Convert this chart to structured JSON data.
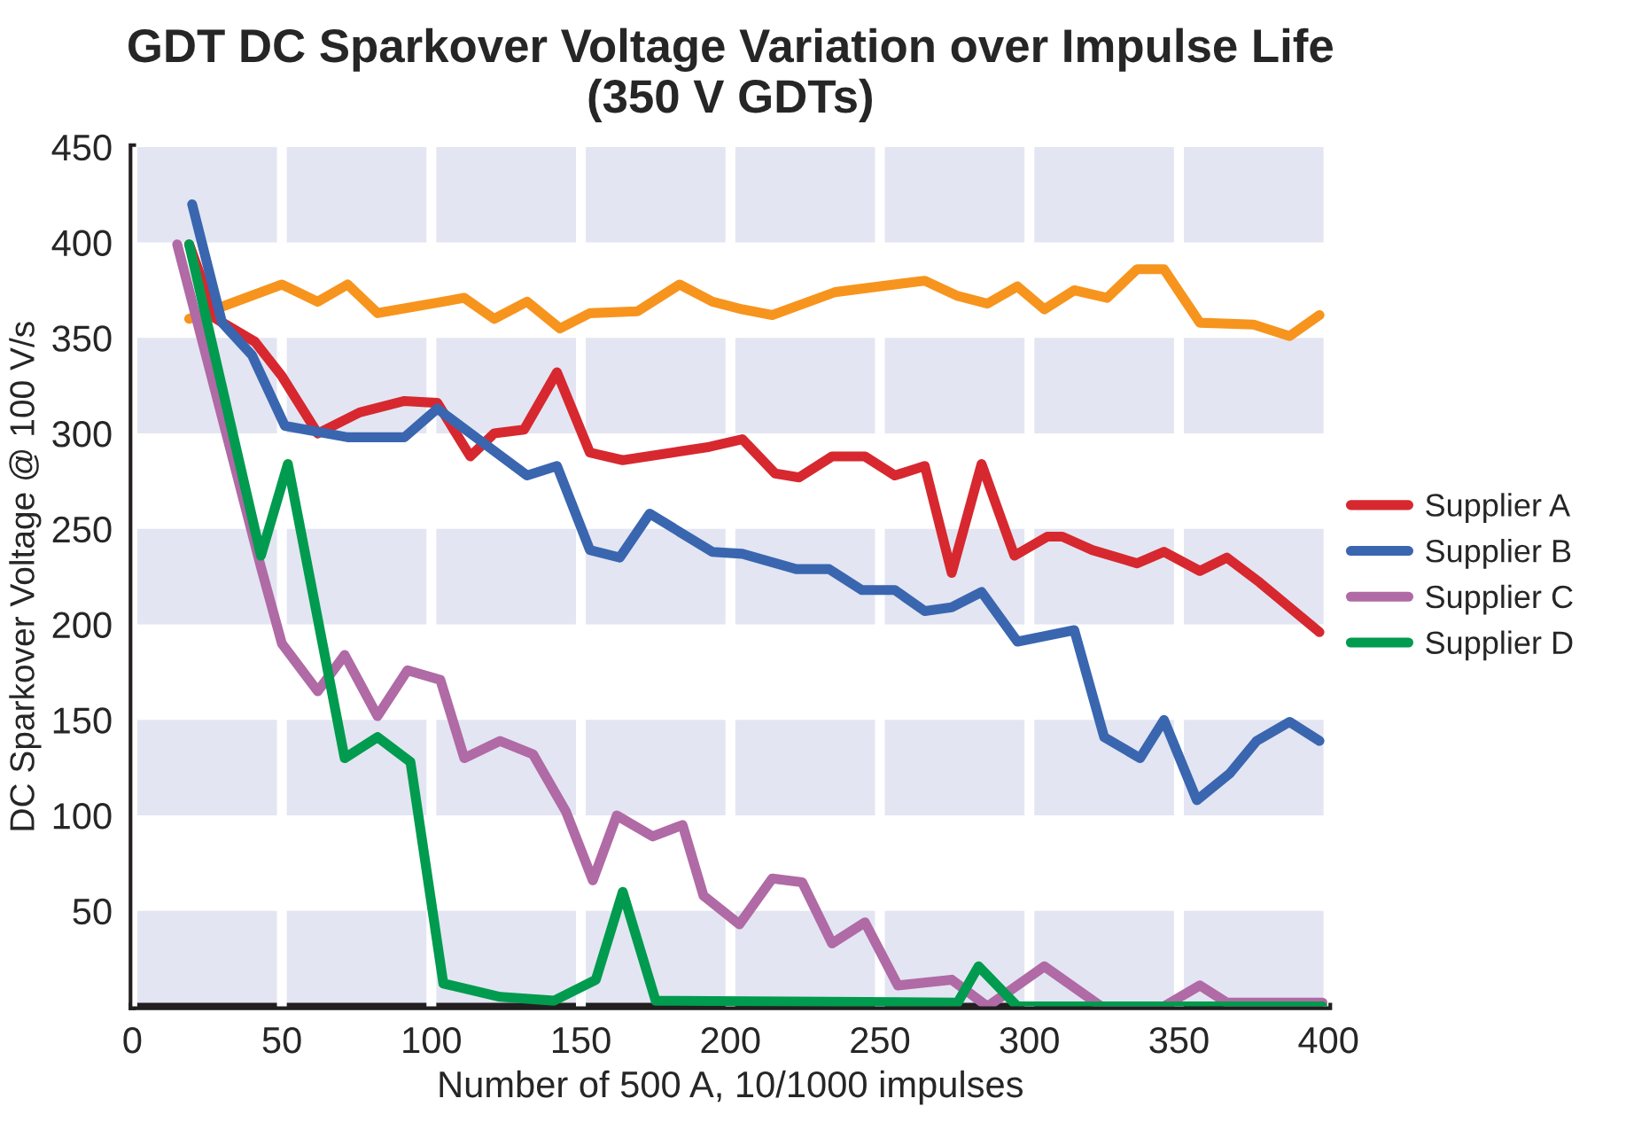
{
  "chart_data": {
    "type": "line",
    "title": "GDT DC Sparkover Voltage Variation over Impulse Life\n(350 V GDTs)",
    "xlabel": "Number of 500 A, 10/1000 impulses",
    "ylabel": "DC Sparkover Voltage @ 100 V/s",
    "xlim": [
      0,
      400
    ],
    "xticks": [
      0,
      50,
      100,
      150,
      200,
      250,
      300,
      350,
      400
    ],
    "ylim": [
      0,
      450
    ],
    "yticks": [
      50,
      100,
      150,
      200,
      250,
      300,
      350,
      400,
      450
    ],
    "grid": "x",
    "legend": "right",
    "line_style": "solid",
    "bands": [
      {
        "axis": "y",
        "from": 0,
        "to": 50,
        "color": "#e3e5f2"
      },
      {
        "axis": "y",
        "from": 100,
        "to": 150,
        "color": "#e3e5f2"
      },
      {
        "axis": "y",
        "from": 200,
        "to": 250,
        "color": "#e3e5f2"
      },
      {
        "axis": "y",
        "from": 300,
        "to": 350,
        "color": "#e3e5f2"
      },
      {
        "axis": "y",
        "from": 400,
        "to": 450,
        "color": "#e3e5f2"
      }
    ],
    "series": [
      {
        "color": "#f7941d",
        "x": [
          19,
          50,
          62,
          72,
          82,
          111,
          121,
          132,
          143,
          153,
          169,
          183,
          194,
          204,
          214,
          235,
          265,
          276,
          286,
          296,
          305,
          315,
          326,
          336,
          345,
          357,
          375,
          387,
          397
        ],
        "values": [
          360,
          378,
          369,
          378,
          363,
          371,
          360,
          369,
          355,
          363,
          364,
          378,
          369,
          365,
          362,
          374,
          380,
          372,
          368,
          377,
          365,
          375,
          371,
          386,
          386,
          358,
          357,
          351,
          362
        ]
      },
      {
        "name": "Supplier A",
        "color": "#d7282f",
        "x": [
          19,
          28,
          41,
          50,
          62,
          76,
          91,
          102,
          113,
          121,
          131,
          142,
          153,
          164,
          193,
          204,
          215,
          223,
          234,
          245,
          255,
          265,
          274,
          284,
          295,
          306,
          311,
          321,
          336,
          345,
          357,
          366,
          377,
          397
        ],
        "values": [
          399,
          360,
          348,
          330,
          300,
          311,
          317,
          316,
          288,
          300,
          302,
          332,
          290,
          286,
          293,
          297,
          279,
          277,
          288,
          288,
          278,
          283,
          227,
          284,
          236,
          246,
          246,
          239,
          232,
          238,
          228,
          235,
          222,
          196
        ]
      },
      {
        "name": "Supplier B",
        "color": "#3a66b0",
        "x": [
          20,
          30,
          40,
          51,
          72,
          91,
          102,
          132,
          142,
          153,
          163,
          173,
          194,
          204,
          222,
          233,
          244,
          255,
          265,
          274,
          284,
          296,
          315,
          325,
          337,
          345,
          356,
          367,
          376,
          387,
          397
        ],
        "values": [
          420,
          358,
          341,
          304,
          298,
          298,
          313,
          278,
          283,
          239,
          235,
          258,
          238,
          237,
          229,
          229,
          218,
          218,
          207,
          209,
          217,
          191,
          197,
          141,
          130,
          150,
          108,
          122,
          139,
          149,
          139
        ]
      },
      {
        "name": "Supplier C",
        "color": "#b06aa5",
        "x": [
          15,
          43,
          50,
          62,
          71,
          82,
          92,
          103,
          111,
          123,
          134,
          145,
          154,
          162,
          174,
          184,
          191,
          203,
          214,
          224,
          234,
          245,
          256,
          274,
          286,
          305,
          324,
          345,
          357,
          366,
          398
        ],
        "values": [
          399,
          230,
          190,
          165,
          184,
          152,
          176,
          171,
          130,
          139,
          132,
          102,
          66,
          100,
          89,
          95,
          58,
          43,
          67,
          65,
          33,
          44,
          11,
          14,
          0,
          21,
          0,
          0,
          11,
          2,
          2
        ]
      },
      {
        "name": "Supplier D",
        "color": "#009b4e",
        "x": [
          19,
          43,
          52,
          71,
          82,
          93,
          104,
          123,
          141,
          155,
          164,
          175,
          276,
          283,
          296,
          398
        ],
        "values": [
          399,
          236,
          284,
          130,
          141,
          128,
          12,
          5,
          3,
          14,
          60,
          3,
          2,
          21,
          0,
          0
        ]
      }
    ]
  }
}
